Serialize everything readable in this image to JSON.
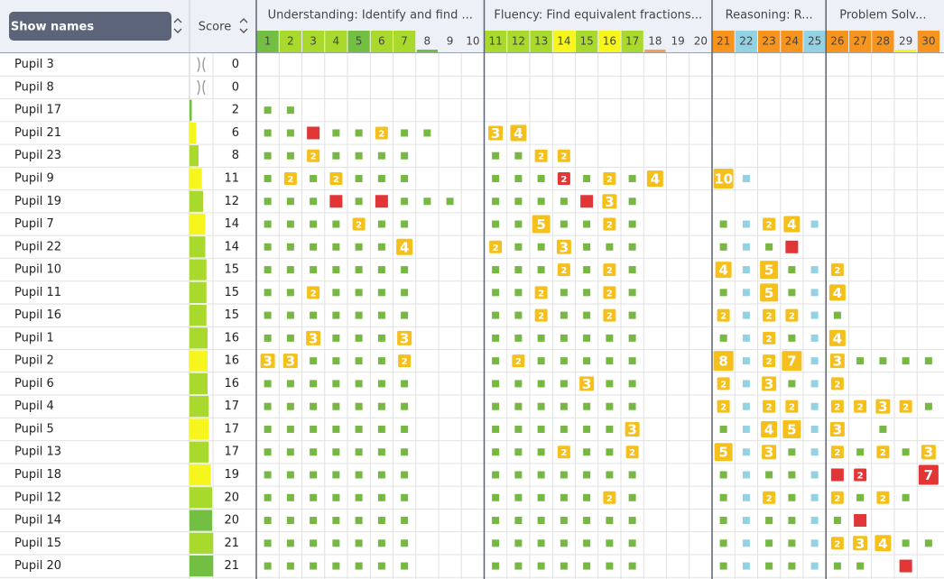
{
  "header": {
    "button": "Show names",
    "score": "Score"
  },
  "marks": {
    "g": "#76b843",
    "b": "#92d2e3",
    "r": "#e23636",
    "badge": "#f6c01c"
  },
  "sections": [
    {
      "title": "Understanding: Identify and find ...",
      "columns": [
        {
          "label": 1,
          "color": "#72bf44"
        },
        {
          "label": 2,
          "color": "#a9d92c"
        },
        {
          "label": 3,
          "color": "#a9d92c"
        },
        {
          "label": 4,
          "color": "#a9d92c"
        },
        {
          "label": 5,
          "color": "#72bf44"
        },
        {
          "label": 6,
          "color": "#a9d92c"
        },
        {
          "label": 7,
          "color": "#a9d92c"
        },
        {
          "label": 8,
          "underline": "#72bf44"
        },
        {
          "label": 9
        },
        {
          "label": 10
        }
      ]
    },
    {
      "title": "Fluency: Find equivalent fractions...",
      "columns": [
        {
          "label": 11,
          "color": "#a9d92c"
        },
        {
          "label": 12,
          "color": "#a9d92c"
        },
        {
          "label": 13,
          "color": "#a9d92c"
        },
        {
          "label": 14,
          "color": "#f6f61e"
        },
        {
          "label": 15,
          "color": "#a9d92c"
        },
        {
          "label": 16,
          "color": "#f6f61e"
        },
        {
          "label": 17,
          "color": "#a9d92c"
        },
        {
          "label": 18,
          "underline": "#f7a04a"
        },
        {
          "label": 19
        },
        {
          "label": 20
        }
      ]
    },
    {
      "title": "Reasoning: R...",
      "columns": [
        {
          "label": 21,
          "color": "#f7941d"
        },
        {
          "label": 22,
          "color": "#92d2e3"
        },
        {
          "label": 23,
          "color": "#f7941d"
        },
        {
          "label": 24,
          "color": "#f7941d"
        },
        {
          "label": 25,
          "color": "#92d2e3"
        }
      ]
    },
    {
      "title": "Problem Solv...",
      "columns": [
        {
          "label": 26,
          "color": "#f7941d"
        },
        {
          "label": 27,
          "color": "#f7941d"
        },
        {
          "label": 28,
          "color": "#f7941d"
        },
        {
          "label": 29,
          "underline": "#f6f61e"
        },
        {
          "label": 30,
          "color": "#f7941d"
        }
      ]
    }
  ],
  "rows": [
    {
      "name": "Pupil 3",
      "score": 0,
      "absent": true,
      "cells": [
        null,
        null,
        null,
        null,
        null,
        null,
        null,
        null,
        null,
        null,
        null,
        null,
        null,
        null,
        null,
        null,
        null,
        null,
        null,
        null,
        null,
        null,
        null,
        null,
        null,
        null,
        null,
        null,
        null,
        null
      ]
    },
    {
      "name": "Pupil 8",
      "score": 0,
      "absent": true,
      "cells": [
        null,
        null,
        null,
        null,
        null,
        null,
        null,
        null,
        null,
        null,
        null,
        null,
        null,
        null,
        null,
        null,
        null,
        null,
        null,
        null,
        null,
        null,
        null,
        null,
        null,
        null,
        null,
        null,
        null,
        null
      ]
    },
    {
      "name": "Pupil 17",
      "score": 2,
      "bar": "#72bf44",
      "cells": [
        "g",
        "g",
        null,
        null,
        null,
        null,
        null,
        null,
        null,
        null,
        null,
        null,
        null,
        null,
        null,
        null,
        null,
        null,
        null,
        null,
        null,
        null,
        null,
        null,
        null,
        null,
        null,
        null,
        null,
        null
      ]
    },
    {
      "name": "Pupil 21",
      "score": 6,
      "bar": "#f6f61e",
      "cells": [
        "g",
        "g",
        "r",
        "g",
        "g",
        2,
        "g",
        "g",
        null,
        null,
        3,
        4,
        null,
        null,
        null,
        null,
        null,
        null,
        null,
        null,
        null,
        null,
        null,
        null,
        null,
        null,
        null,
        null,
        null,
        null
      ]
    },
    {
      "name": "Pupil 23",
      "score": 8,
      "bar": "#a9d92c",
      "cells": [
        "g",
        "g",
        2,
        "g",
        "g",
        "g",
        "g",
        null,
        null,
        null,
        "g",
        "g",
        2,
        2,
        null,
        null,
        null,
        null,
        null,
        null,
        null,
        null,
        null,
        null,
        null,
        null,
        null,
        null,
        null,
        null
      ]
    },
    {
      "name": "Pupil 9",
      "score": 11,
      "bar": "#f6f61e",
      "cells": [
        "g",
        2,
        "g",
        2,
        "g",
        "g",
        "g",
        null,
        null,
        null,
        "g",
        "g",
        "g",
        {
          "value": 2,
          "mark": "r"
        },
        "g",
        2,
        "g",
        4,
        null,
        null,
        10,
        "b",
        null,
        null,
        null,
        null,
        null,
        null,
        null,
        null
      ]
    },
    {
      "name": "Pupil 19",
      "score": 12,
      "bar": "#a9d92c",
      "cells": [
        "g",
        "g",
        "g",
        "r",
        "g",
        "r",
        "g",
        "g",
        "g",
        null,
        "g",
        "g",
        "g",
        "g",
        "r",
        3,
        "g",
        null,
        null,
        null,
        null,
        null,
        null,
        null,
        null,
        null,
        null,
        null,
        null,
        null
      ]
    },
    {
      "name": "Pupil 7",
      "score": 14,
      "bar": "#f6f61e",
      "cells": [
        "g",
        "g",
        "g",
        "g",
        2,
        "g",
        "g",
        null,
        null,
        null,
        "g",
        "g",
        5,
        "g",
        "g",
        2,
        "g",
        null,
        null,
        null,
        "g",
        "b",
        2,
        4,
        "b",
        null,
        null,
        null,
        null,
        null
      ]
    },
    {
      "name": "Pupil 22",
      "score": 14,
      "bar": "#a9d92c",
      "cells": [
        "g",
        "g",
        "g",
        "g",
        "g",
        "g",
        4,
        null,
        null,
        null,
        2,
        "g",
        "g",
        3,
        "g",
        "g",
        "g",
        null,
        null,
        null,
        "g",
        "b",
        "g",
        "r",
        null,
        null,
        null,
        null,
        null,
        null
      ]
    },
    {
      "name": "Pupil 10",
      "score": 15,
      "bar": "#a9d92c",
      "cells": [
        "g",
        "g",
        "g",
        "g",
        "g",
        "g",
        "g",
        null,
        null,
        null,
        "g",
        "g",
        "g",
        2,
        "g",
        2,
        "g",
        null,
        null,
        null,
        4,
        "b",
        5,
        "g",
        "b",
        2,
        null,
        null,
        null,
        null
      ]
    },
    {
      "name": "Pupil 11",
      "score": 15,
      "bar": "#a9d92c",
      "cells": [
        "g",
        "g",
        2,
        "g",
        "g",
        "g",
        "g",
        null,
        null,
        null,
        "g",
        "g",
        2,
        "g",
        "g",
        2,
        "g",
        null,
        null,
        null,
        "g",
        "b",
        5,
        "g",
        "b",
        4,
        null,
        null,
        null,
        null
      ]
    },
    {
      "name": "Pupil 16",
      "score": 15,
      "bar": "#a9d92c",
      "cells": [
        "g",
        "g",
        "g",
        "g",
        "g",
        "g",
        "g",
        null,
        null,
        null,
        "g",
        "g",
        2,
        "g",
        "g",
        2,
        "g",
        null,
        null,
        null,
        2,
        "b",
        2,
        2,
        "b",
        "g",
        null,
        null,
        null,
        null
      ]
    },
    {
      "name": "Pupil 1",
      "score": 16,
      "bar": "#a9d92c",
      "cells": [
        "g",
        "g",
        3,
        "g",
        "g",
        "g",
        3,
        null,
        null,
        null,
        "g",
        "g",
        "g",
        "g",
        "g",
        "g",
        "g",
        null,
        null,
        null,
        "g",
        "b",
        2,
        "g",
        "b",
        4,
        null,
        null,
        null,
        null
      ]
    },
    {
      "name": "Pupil 2",
      "score": 16,
      "bar": "#f6f61e",
      "cells": [
        3,
        3,
        "g",
        "g",
        "g",
        "g",
        2,
        null,
        null,
        null,
        "g",
        2,
        "g",
        "g",
        "g",
        "g",
        "g",
        null,
        null,
        null,
        8,
        "b",
        2,
        7,
        "b",
        3,
        "g",
        "g",
        "g",
        "g"
      ]
    },
    {
      "name": "Pupil 6",
      "score": 16,
      "bar": "#a9d92c",
      "cells": [
        "g",
        "g",
        "g",
        "g",
        "g",
        "g",
        "g",
        null,
        null,
        null,
        "g",
        "g",
        "g",
        "g",
        3,
        "g",
        "g",
        null,
        null,
        null,
        2,
        "b",
        3,
        "g",
        "b",
        2,
        null,
        null,
        null,
        null
      ]
    },
    {
      "name": "Pupil 4",
      "score": 17,
      "bar": "#a9d92c",
      "cells": [
        "g",
        "g",
        "g",
        "g",
        "g",
        "g",
        "g",
        null,
        null,
        null,
        "g",
        "g",
        "g",
        "g",
        "g",
        "g",
        "g",
        null,
        null,
        null,
        2,
        "b",
        2,
        2,
        "b",
        2,
        2,
        3,
        2,
        "g"
      ]
    },
    {
      "name": "Pupil 5",
      "score": 17,
      "bar": "#f6f61e",
      "cells": [
        "g",
        "g",
        "g",
        "g",
        "g",
        "g",
        "g",
        null,
        null,
        null,
        "g",
        "g",
        "g",
        "g",
        "g",
        "g",
        3,
        null,
        null,
        null,
        "g",
        "b",
        4,
        5,
        "b",
        3,
        null,
        "g",
        null,
        null
      ]
    },
    {
      "name": "Pupil 13",
      "score": 17,
      "bar": "#a9d92c",
      "cells": [
        "g",
        "g",
        "g",
        "g",
        "g",
        "g",
        "g",
        null,
        null,
        null,
        "g",
        "g",
        "g",
        2,
        "g",
        "g",
        2,
        null,
        null,
        null,
        5,
        "b",
        3,
        "g",
        "b",
        2,
        "g",
        2,
        "g",
        3
      ]
    },
    {
      "name": "Pupil 18",
      "score": 19,
      "bar": "#f6f61e",
      "cells": [
        "g",
        "g",
        "g",
        "g",
        "g",
        "g",
        "g",
        null,
        null,
        null,
        "g",
        "g",
        "g",
        "g",
        "g",
        "g",
        "g",
        null,
        null,
        null,
        "g",
        "b",
        "g",
        "g",
        "b",
        "r",
        {
          "value": 2,
          "mark": "r"
        },
        null,
        null,
        {
          "value": 7,
          "mark": "r"
        }
      ]
    },
    {
      "name": "Pupil 12",
      "score": 20,
      "bar": "#a9d92c",
      "cells": [
        "g",
        "g",
        "g",
        "g",
        "g",
        "g",
        "g",
        null,
        null,
        null,
        "g",
        "g",
        "g",
        "g",
        "g",
        2,
        "g",
        null,
        null,
        null,
        "g",
        "b",
        2,
        "g",
        "b",
        2,
        "g",
        2,
        "g",
        null
      ]
    },
    {
      "name": "Pupil 14",
      "score": 20,
      "bar": "#72bf44",
      "cells": [
        "g",
        "g",
        "g",
        "g",
        "g",
        "g",
        "g",
        null,
        null,
        null,
        "g",
        "g",
        "g",
        "g",
        "g",
        "g",
        "g",
        null,
        null,
        null,
        "g",
        "b",
        "g",
        "g",
        "b",
        "g",
        "r",
        null,
        null,
        null
      ]
    },
    {
      "name": "Pupil 15",
      "score": 21,
      "bar": "#a9d92c",
      "cells": [
        "g",
        "g",
        "g",
        "g",
        "g",
        "g",
        "g",
        null,
        null,
        null,
        "g",
        "g",
        "g",
        "g",
        "g",
        "g",
        "g",
        null,
        null,
        null,
        "g",
        "b",
        "g",
        "g",
        "b",
        2,
        3,
        4,
        "g",
        "g"
      ]
    },
    {
      "name": "Pupil 20",
      "score": 21,
      "bar": "#72bf44",
      "cells": [
        "g",
        "g",
        "g",
        "g",
        "g",
        "g",
        "g",
        null,
        null,
        null,
        "g",
        "g",
        "g",
        "g",
        "g",
        "g",
        "g",
        null,
        null,
        null,
        "g",
        "b",
        "g",
        "g",
        "b",
        "g",
        "g",
        null,
        "r",
        null
      ]
    }
  ]
}
